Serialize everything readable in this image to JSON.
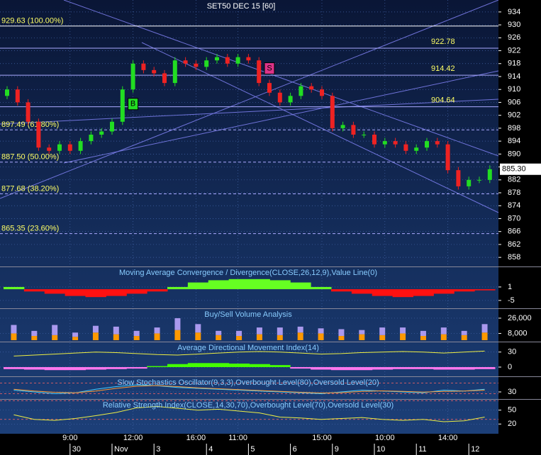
{
  "chart_data": [
    {
      "type": "candlestick",
      "title": "SET50 DEC 15   [60]",
      "open": [
        908,
        910,
        906,
        900,
        892,
        891,
        893,
        891,
        894,
        896,
        897,
        900,
        910,
        918,
        916,
        915,
        912,
        919,
        918,
        917,
        919,
        920,
        918,
        920,
        919,
        912,
        909,
        906,
        908,
        911,
        910,
        908,
        898,
        899,
        896,
        896,
        893,
        894,
        893,
        891,
        892,
        894,
        893,
        885,
        880,
        882,
        882
      ],
      "high": [
        911,
        911,
        907,
        901,
        893,
        894,
        894,
        895,
        897,
        898,
        901,
        911,
        919,
        919,
        917,
        916,
        920,
        920,
        919,
        920,
        921,
        921,
        921,
        921,
        920,
        913,
        910,
        909,
        912,
        912,
        911,
        909,
        900,
        900,
        897,
        897,
        895,
        895,
        894,
        893,
        895,
        895,
        894,
        886,
        883,
        883,
        886.5
      ],
      "low": [
        907,
        905,
        899,
        891,
        890,
        890,
        890,
        890,
        893,
        895,
        896,
        899,
        909,
        915,
        914,
        911,
        911,
        917,
        916,
        916,
        918,
        917,
        917,
        918,
        911,
        908,
        905,
        905,
        907,
        909,
        907,
        897,
        897,
        895,
        895,
        892,
        892,
        892,
        890,
        890,
        891,
        892,
        884,
        879,
        879,
        881,
        881
      ],
      "close": [
        910,
        906,
        900,
        892,
        891,
        893,
        891,
        894,
        896,
        897,
        900,
        910,
        918,
        916,
        915,
        912,
        919,
        918,
        917,
        919,
        920,
        918,
        920,
        919,
        912,
        909,
        906,
        908,
        911,
        910,
        908,
        898,
        899,
        896,
        896,
        893,
        894,
        893,
        891,
        892,
        894,
        893,
        885,
        880,
        882,
        882,
        885.3
      ],
      "up_color": "#22dd22",
      "down_color": "#ee2222",
      "categories": [
        null,
        null,
        null,
        null,
        null,
        null,
        "9:00",
        null,
        null,
        null,
        null,
        null,
        "12:00",
        null,
        null,
        null,
        null,
        null,
        "16:00",
        null,
        null,
        null,
        "11:00",
        null,
        null,
        null,
        null,
        null,
        null,
        null,
        "15:00",
        null,
        null,
        null,
        null,
        null,
        "10:00",
        null,
        null,
        null,
        null,
        null,
        "14:00",
        null,
        null,
        null,
        null
      ],
      "date_categories": [
        null,
        null,
        null,
        null,
        null,
        null,
        "30",
        null,
        null,
        null,
        "Nov",
        null,
        null,
        null,
        "3",
        null,
        null,
        null,
        null,
        "4",
        null,
        null,
        null,
        "5",
        null,
        null,
        null,
        "6",
        null,
        null,
        null,
        "9",
        null,
        null,
        null,
        "10",
        null,
        null,
        null,
        "11",
        null,
        null,
        null,
        null,
        "12",
        null,
        null
      ],
      "ylim": [
        855.4,
        937.7
      ],
      "yticks": [
        934,
        930,
        926,
        922,
        918,
        914,
        910,
        906,
        902,
        898,
        894,
        890,
        886,
        882,
        878,
        874,
        870,
        866,
        862,
        858
      ],
      "levels": [
        {
          "value": 929.63,
          "label": "929.63 (100.00%)"
        },
        {
          "value": 897.49,
          "label": "897.49 (61.80%)"
        },
        {
          "value": 887.5,
          "label": "887.50 (50.00%)"
        },
        {
          "value": 877.68,
          "label": "877.68 (38.20%)"
        },
        {
          "value": 865.35,
          "label": "865.35 (23.60%)"
        }
      ],
      "lines": [
        922.78,
        914.42,
        904.64
      ],
      "last_price": {
        "value": 885.3,
        "label": "885.30"
      },
      "signals": [
        {
          "label": "S",
          "index": 25,
          "color": "#dd3388"
        },
        {
          "label": "B",
          "index": 12,
          "color": "#22dd22"
        }
      ]
    },
    {
      "type": "signed_bar",
      "title": "Moving Average Convergence / Divergence(CLOSE,26,12,9),Value Line(0)",
      "values": [
        1,
        -1,
        -2,
        -3,
        -3.5,
        -3,
        -2,
        -1,
        1,
        3,
        4,
        4.5,
        4.5,
        4,
        3,
        1,
        -1,
        -2,
        -3,
        -3.5,
        -3,
        -2,
        -1,
        -0.5
      ],
      "up_color": "#66ff22",
      "down_color": "#ff1111",
      "ylim": [
        -8.5,
        9.5
      ],
      "yticks": [
        1,
        -5
      ]
    },
    {
      "type": "stacked_bar",
      "title": "Buy/Sell Volume Analysis",
      "series": [
        {
          "color": "#ff9900",
          "values": [
            8000,
            5000,
            6000,
            4000,
            9000,
            7000,
            5000,
            8000,
            12000,
            9000,
            6000,
            5000,
            7000,
            6000,
            9000,
            8000,
            5000,
            7000,
            6000,
            8000,
            5000,
            7000,
            6000,
            9000
          ]
        },
        {
          "color": "#aa99ee",
          "values": [
            10000,
            6000,
            12000,
            5000,
            8000,
            9000,
            6000,
            7000,
            14000,
            10000,
            5000,
            6000,
            8000,
            9000,
            7000,
            6000,
            8000,
            5000,
            9000,
            7000,
            6000,
            8000,
            5000,
            10000
          ]
        }
      ],
      "ylim": [
        0,
        36000
      ],
      "yticks": [
        {
          "value": 26000,
          "label": "26,000"
        },
        {
          "value": 8000,
          "label": "8,000"
        }
      ]
    },
    {
      "type": "signed_bar",
      "title": "Average Directional Movement Index(14)",
      "values": [
        -4,
        -5,
        -6,
        -6,
        -5,
        -4,
        -3,
        2,
        6,
        8,
        8,
        7,
        6,
        4,
        -3,
        -5,
        -6,
        -6,
        -5,
        -4,
        -4,
        -5,
        -5,
        -4
      ],
      "up_color": "#44ff00",
      "down_color": "#ff77ee",
      "series": [
        {
          "color": "#eeee44",
          "values": [
            22,
            24,
            26,
            28,
            30,
            29,
            27,
            25,
            24,
            26,
            28,
            30,
            31,
            30,
            28,
            26,
            27,
            29,
            30,
            31,
            30,
            28,
            30,
            32
          ]
        }
      ],
      "ylim": [
        -17,
        48
      ],
      "yticks": [
        30,
        0
      ]
    },
    {
      "type": "line",
      "title": "Slow Stochastics Oscillator(9,3,3),Overbought Level(80),Oversold Level(20)",
      "series": [
        {
          "color": "#44ccff",
          "values": [
            40,
            30,
            20,
            25,
            45,
            60,
            70,
            65,
            55,
            50,
            45,
            40,
            35,
            30,
            25,
            20,
            30,
            40,
            35,
            30,
            25,
            40,
            35,
            45
          ]
        },
        {
          "color": "#ff9933",
          "values": [
            45,
            35,
            28,
            25,
            35,
            50,
            62,
            66,
            60,
            53,
            48,
            43,
            38,
            33,
            28,
            24,
            26,
            33,
            36,
            33,
            29,
            33,
            35,
            40
          ]
        }
      ],
      "levels": [
        80,
        20
      ],
      "ylim": [
        -10,
        110
      ],
      "yticks": [
        30
      ]
    },
    {
      "type": "line",
      "title": "Relative Strength Index(CLOSE,14,30,70),Overbought Level(70),Oversold Level(30)",
      "series": [
        {
          "color": "#eeee44",
          "values": [
            40,
            30,
            28,
            32,
            38,
            45,
            55,
            58,
            54,
            50,
            52,
            48,
            44,
            35,
            33,
            30,
            32,
            34,
            30,
            28,
            30,
            25,
            27,
            35
          ]
        }
      ],
      "levels": [
        70,
        30
      ],
      "ylim": [
        -1,
        71
      ],
      "yticks": [
        50,
        20
      ]
    }
  ]
}
